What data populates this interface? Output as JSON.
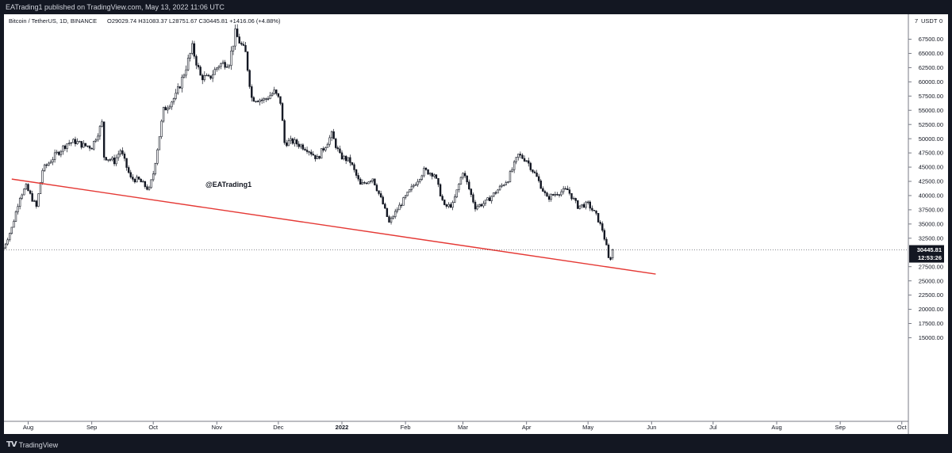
{
  "header": {
    "publish_text": "EATrading1 published on TradingView.com, May 13, 2022 11:06 UTC"
  },
  "footer": {
    "logo_text": "TradingView"
  },
  "chart_data": {
    "type": "candlestick",
    "symbol_line": "Bitcoin / TetherUS, 1D, BINANCE",
    "ohlc_readout": "O29029.74  H31083.37  L28751.67  C30445.81  +1416.06 (+4.88%)",
    "watermark": "@EATrading1",
    "currency_label": "USDT",
    "price_axis_label_top": "7",
    "price_axis_label_top_right": "0",
    "y_ticks": [
      "67500.00",
      "65000.00",
      "62500.00",
      "60000.00",
      "57500.00",
      "55000.00",
      "52500.00",
      "50000.00",
      "47500.00",
      "45000.00",
      "42500.00",
      "40000.00",
      "37500.00",
      "35000.00",
      "32500.00",
      "27500.00",
      "25000.00",
      "22500.00",
      "20000.00",
      "17500.00",
      "15000.00"
    ],
    "y_tick_values": [
      67500,
      65000,
      62500,
      60000,
      57500,
      55000,
      52500,
      50000,
      47500,
      45000,
      42500,
      40000,
      37500,
      35000,
      32500,
      27500,
      25000,
      22500,
      20000,
      17500,
      15000
    ],
    "x_ticks": [
      "Aug",
      "Sep",
      "Oct",
      "Nov",
      "Dec",
      "2022",
      "Feb",
      "Mar",
      "Apr",
      "May",
      "Jun",
      "Jul",
      "Aug",
      "Sep",
      "Oct"
    ],
    "x_tick_dates": [
      "2021-08-01",
      "2021-09-01",
      "2021-10-01",
      "2021-11-01",
      "2021-12-01",
      "2022-01-01",
      "2022-02-01",
      "2022-03-01",
      "2022-04-01",
      "2022-05-01",
      "2022-06-01",
      "2022-07-01",
      "2022-08-01",
      "2022-09-01",
      "2022-10-01"
    ],
    "last_price": {
      "value": 30445.81,
      "label": "30445.81",
      "countdown": "12:53:26"
    },
    "trendline": {
      "color": "#e53935",
      "from": {
        "date": "2021-07-24",
        "price": 42900
      },
      "to": {
        "date": "2022-06-03",
        "price": 26200
      }
    },
    "close_path": [
      [
        "2021-07-20",
        30800
      ],
      [
        "2021-07-24",
        34300
      ],
      [
        "2021-07-28",
        39900
      ],
      [
        "2021-07-31",
        41500
      ],
      [
        "2021-08-05",
        38000
      ],
      [
        "2021-08-08",
        44500
      ],
      [
        "2021-08-14",
        47000
      ],
      [
        "2021-08-20",
        49200
      ],
      [
        "2021-08-24",
        49500
      ],
      [
        "2021-08-28",
        48800
      ],
      [
        "2021-09-01",
        48600
      ],
      [
        "2021-09-06",
        52700
      ],
      [
        "2021-09-07",
        46900
      ],
      [
        "2021-09-12",
        46000
      ],
      [
        "2021-09-15",
        48000
      ],
      [
        "2021-09-20",
        43000
      ],
      [
        "2021-09-24",
        42700
      ],
      [
        "2021-09-29",
        41000
      ],
      [
        "2021-10-01",
        43900
      ],
      [
        "2021-10-06",
        55000
      ],
      [
        "2021-10-12",
        57500
      ],
      [
        "2021-10-16",
        61500
      ],
      [
        "2021-10-20",
        66000
      ],
      [
        "2021-10-24",
        61000
      ],
      [
        "2021-10-28",
        60500
      ],
      [
        "2021-11-02",
        63000
      ],
      [
        "2021-11-07",
        63500
      ],
      [
        "2021-11-10",
        68500
      ],
      [
        "2021-11-15",
        65000
      ],
      [
        "2021-11-18",
        57200
      ],
      [
        "2021-11-24",
        56800
      ],
      [
        "2021-11-29",
        58200
      ],
      [
        "2021-12-02",
        56500
      ],
      [
        "2021-12-04",
        49300
      ],
      [
        "2021-12-08",
        49500
      ],
      [
        "2021-12-15",
        48300
      ],
      [
        "2021-12-20",
        46500
      ],
      [
        "2021-12-27",
        50700
      ],
      [
        "2021-12-31",
        47000
      ],
      [
        "2022-01-05",
        46000
      ],
      [
        "2022-01-10",
        41800
      ],
      [
        "2022-01-16",
        43100
      ],
      [
        "2022-01-21",
        38500
      ],
      [
        "2022-01-24",
        35200
      ],
      [
        "2022-01-28",
        37600
      ],
      [
        "2022-02-04",
        41300
      ],
      [
        "2022-02-10",
        44400
      ],
      [
        "2022-02-15",
        43800
      ],
      [
        "2022-02-20",
        38000
      ],
      [
        "2022-02-24",
        38400
      ],
      [
        "2022-03-01",
        44300
      ],
      [
        "2022-03-07",
        38000
      ],
      [
        "2022-03-12",
        38800
      ],
      [
        "2022-03-18",
        41000
      ],
      [
        "2022-03-23",
        42900
      ],
      [
        "2022-03-28",
        47100
      ],
      [
        "2022-04-01",
        46300
      ],
      [
        "2022-04-06",
        43200
      ],
      [
        "2022-04-11",
        39500
      ],
      [
        "2022-04-16",
        40500
      ],
      [
        "2022-04-21",
        41000
      ],
      [
        "2022-04-26",
        38100
      ],
      [
        "2022-05-01",
        38500
      ],
      [
        "2022-05-05",
        36500
      ],
      [
        "2022-05-08",
        34000
      ],
      [
        "2022-05-10",
        31000
      ],
      [
        "2022-05-11",
        28900
      ],
      [
        "2022-05-12",
        29000
      ],
      [
        "2022-05-13",
        30445
      ]
    ]
  }
}
